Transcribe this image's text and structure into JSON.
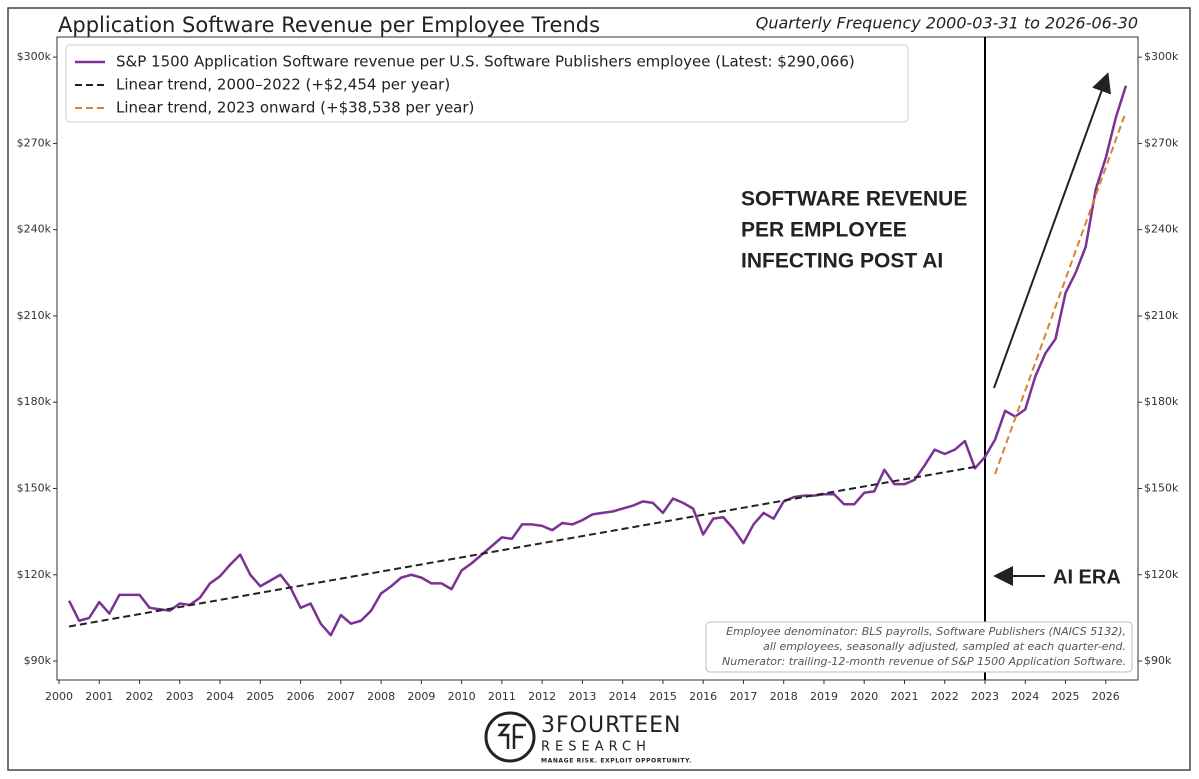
{
  "chart_data": {
    "type": "line",
    "title": "Application Software Revenue per Employee Trends",
    "subtitle": "Quarterly Frequency 2000-03-31 to 2026-06-30",
    "x": [
      2000.25,
      2000.5,
      2000.75,
      2001,
      2001.25,
      2001.5,
      2001.75,
      2002,
      2002.25,
      2002.5,
      2002.75,
      2003,
      2003.25,
      2003.5,
      2003.75,
      2004,
      2004.25,
      2004.5,
      2004.75,
      2005,
      2005.25,
      2005.5,
      2005.75,
      2006,
      2006.25,
      2006.5,
      2006.75,
      2007,
      2007.25,
      2007.5,
      2007.75,
      2008,
      2008.25,
      2008.5,
      2008.75,
      2009,
      2009.25,
      2009.5,
      2009.75,
      2010,
      2010.25,
      2010.5,
      2010.75,
      2011,
      2011.25,
      2011.5,
      2011.75,
      2012,
      2012.25,
      2012.5,
      2012.75,
      2013,
      2013.25,
      2013.5,
      2013.75,
      2014,
      2014.25,
      2014.5,
      2014.75,
      2015,
      2015.25,
      2015.5,
      2015.75,
      2016,
      2016.25,
      2016.5,
      2016.75,
      2017,
      2017.25,
      2017.5,
      2017.75,
      2018,
      2018.25,
      2018.5,
      2018.75,
      2019,
      2019.25,
      2019.5,
      2019.75,
      2020,
      2020.25,
      2020.5,
      2020.75,
      2021,
      2021.25,
      2021.5,
      2021.75,
      2022,
      2022.25,
      2022.5,
      2022.75,
      2023,
      2023.25,
      2023.5,
      2023.75,
      2024,
      2024.25,
      2024.5,
      2024.75,
      2025,
      2025.25,
      2025.5,
      2025.75,
      2026,
      2026.25,
      2026.5
    ],
    "series": [
      {
        "name": "S&P 1500 Application Software revenue per U.S. Software Publishers employee (Latest: $290,066)",
        "color": "#7b3294",
        "width": 2.5,
        "values": [
          111000,
          104000,
          105000,
          110500,
          106500,
          113000,
          113000,
          113000,
          108500,
          108000,
          107500,
          110000,
          109500,
          112000,
          117000,
          119500,
          123500,
          127000,
          120000,
          116000,
          118000,
          120000,
          115500,
          108500,
          110000,
          103000,
          99000,
          106000,
          103000,
          104000,
          107500,
          113500,
          116000,
          119000,
          120000,
          119000,
          117000,
          117000,
          115000,
          121500,
          124000,
          127000,
          130000,
          133000,
          132500,
          137500,
          137500,
          137000,
          135500,
          138000,
          137500,
          139000,
          141000,
          141500,
          142000,
          143000,
          144000,
          145500,
          145000,
          141500,
          146500,
          145000,
          143000,
          134000,
          139500,
          140000,
          136000,
          131000,
          137500,
          141500,
          139500,
          145500,
          147000,
          147500,
          147500,
          148000,
          148000,
          144500,
          144500,
          148500,
          149000,
          156500,
          151500,
          151500,
          153000,
          158000,
          163500,
          162000,
          163500,
          166500,
          157000,
          161000,
          167000,
          177000,
          175000,
          177500,
          189000,
          197000,
          202000,
          218000,
          225000,
          234000,
          254000,
          265000,
          279000,
          290066
        ]
      },
      {
        "name": "Linear trend, 2000–2022 (+$2,454 per year)",
        "color": "#222222",
        "dash": true,
        "width": 2,
        "x": [
          2000.25,
          2022.75
        ],
        "values": [
          102000,
          157500
        ]
      },
      {
        "name": "Linear trend, 2023 onward (+$38,538 per year)",
        "color": "#d9822b",
        "dash": true,
        "width": 2,
        "x": [
          2023.25,
          2026.5
        ],
        "values": [
          155000,
          281000
        ]
      }
    ],
    "xlim": [
      1999.95,
      2026.8
    ],
    "xticks": [
      2000,
      2001,
      2002,
      2003,
      2004,
      2005,
      2006,
      2007,
      2008,
      2009,
      2010,
      2011,
      2012,
      2013,
      2014,
      2015,
      2016,
      2017,
      2018,
      2019,
      2020,
      2021,
      2022,
      2023,
      2024,
      2025,
      2026
    ],
    "ylim": [
      83400,
      307000
    ],
    "yticks": [
      {
        "value": 90000,
        "label": "$90k"
      },
      {
        "value": 120000,
        "label": "$120k"
      },
      {
        "value": 150000,
        "label": "$150k"
      },
      {
        "value": 180000,
        "label": "$180k"
      },
      {
        "value": 210000,
        "label": "$210k"
      },
      {
        "value": 240000,
        "label": "$240k"
      },
      {
        "value": 270000,
        "label": "$270k"
      },
      {
        "value": 300000,
        "label": "$300k"
      }
    ],
    "vline_x": 2023,
    "annotation_lines": [
      "SOFTWARE REVENUE",
      "PER EMPLOYEE",
      "INFECTING POST AI"
    ],
    "era_label": "AI ERA",
    "note_lines": [
      "Employee denominator: BLS payrolls, Software Publishers (NAICS 5132),",
      "all employees, seasonally adjusted, sampled at each quarter-end.",
      "Numerator: trailing-12-month revenue of S&P 1500 Application Software."
    ],
    "logo": {
      "name": "3FOURTEEN",
      "sub": "RESEARCH",
      "tagline": "MANAGE RISK. EXPLOIT OPPORTUNITY."
    }
  }
}
